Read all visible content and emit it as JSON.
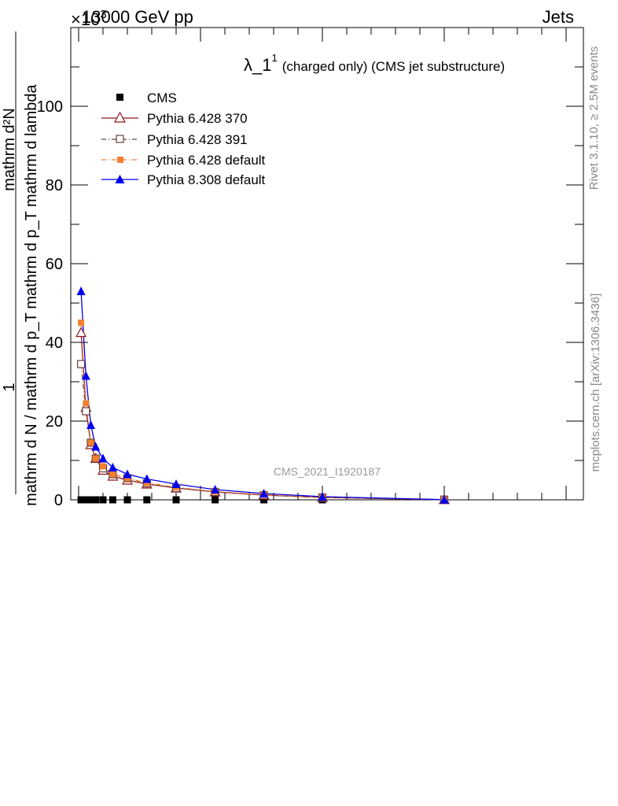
{
  "header": {
    "left": "13000 GeV pp",
    "right": "Jets",
    "exponent_prefix": "×10",
    "exponent_power": "3"
  },
  "side_text": {
    "upper": "Rivet 3.1.10, ≥ 2.5M events",
    "lower": "mcplots.cern.ch [arXiv:1306.3436]"
  },
  "chart_data": {
    "type": "line",
    "title": "λ_1",
    "title_superscript": "1",
    "title_suffix": "(charged only) (CMS jet substructure)",
    "watermark": "CMS_2021_I1920187",
    "ylabel": {
      "numerator": "1",
      "denominator": "mathrm d N / mathrm d p_T",
      "denominator_sub": "T",
      "top_numerator": "mathrm d²N",
      "top_denominator": "mathrm d p_T mathrm d lambda"
    },
    "ylabel_full": "mathrm d N / mathrm d p_T mathrm d p_T mathrm d lambda ... mathrm d²N",
    "yticks": [
      "0",
      "20",
      "40",
      "60",
      "80",
      "100"
    ],
    "ylim": [
      0,
      120
    ],
    "y_scale_factor": "×10^3",
    "xlim": [
      0,
      1
    ],
    "grid": false,
    "legend_position": "top-left",
    "colors": {
      "cms": "#000000",
      "p6_370": "#8b1a1a",
      "p6_391": "#6b4040",
      "p6_default": "#f28030",
      "p8_default": "#0000ee"
    },
    "series": [
      {
        "name": "CMS",
        "marker": "square-filled",
        "line": "none",
        "x": [
          0.005,
          0.015,
          0.025,
          0.035,
          0.05,
          0.07,
          0.1,
          0.14,
          0.2,
          0.28,
          0.38,
          0.5,
          0.75
        ],
        "y": [
          0,
          0,
          0,
          0,
          0,
          0,
          0,
          0,
          0,
          0,
          0,
          0,
          0
        ]
      },
      {
        "name": "Pythia 6.428 370",
        "marker": "triangle-open",
        "line": "solid",
        "x": [
          0.005,
          0.015,
          0.025,
          0.035,
          0.05,
          0.07,
          0.1,
          0.14,
          0.2,
          0.28,
          0.38,
          0.5,
          0.75
        ],
        "y": [
          42.5,
          23.5,
          14.0,
          10.5,
          7.5,
          6.0,
          5.0,
          4.0,
          3.0,
          2.0,
          1.2,
          0.6,
          0.05
        ]
      },
      {
        "name": "Pythia 6.428 391",
        "marker": "square-open",
        "line": "dashdot",
        "x": [
          0.005,
          0.015,
          0.025,
          0.035,
          0.05,
          0.07,
          0.1,
          0.14,
          0.2,
          0.28,
          0.38,
          0.5,
          0.75
        ],
        "y": [
          34.5,
          22.5,
          14.5,
          10.5,
          8.0,
          6.5,
          5.5,
          4.2,
          3.0,
          2.0,
          1.2,
          0.6,
          0.05
        ]
      },
      {
        "name": "Pythia 6.428 default",
        "marker": "square-filled",
        "line": "dashdot",
        "x": [
          0.005,
          0.015,
          0.025,
          0.035,
          0.05,
          0.07,
          0.1,
          0.14,
          0.2,
          0.28,
          0.38,
          0.5,
          0.75
        ],
        "y": [
          45.0,
          24.5,
          14.5,
          10.5,
          8.5,
          6.5,
          5.5,
          4.3,
          3.2,
          2.1,
          1.3,
          0.6,
          0.05
        ]
      },
      {
        "name": "Pythia 8.308 default",
        "marker": "triangle-filled",
        "line": "solid",
        "x": [
          0.005,
          0.015,
          0.025,
          0.035,
          0.05,
          0.07,
          0.1,
          0.14,
          0.2,
          0.28,
          0.38,
          0.5,
          0.75
        ],
        "y": [
          53.0,
          31.5,
          19.0,
          13.5,
          10.5,
          8.2,
          6.5,
          5.3,
          4.0,
          2.6,
          1.6,
          0.8,
          0.05
        ]
      }
    ]
  }
}
